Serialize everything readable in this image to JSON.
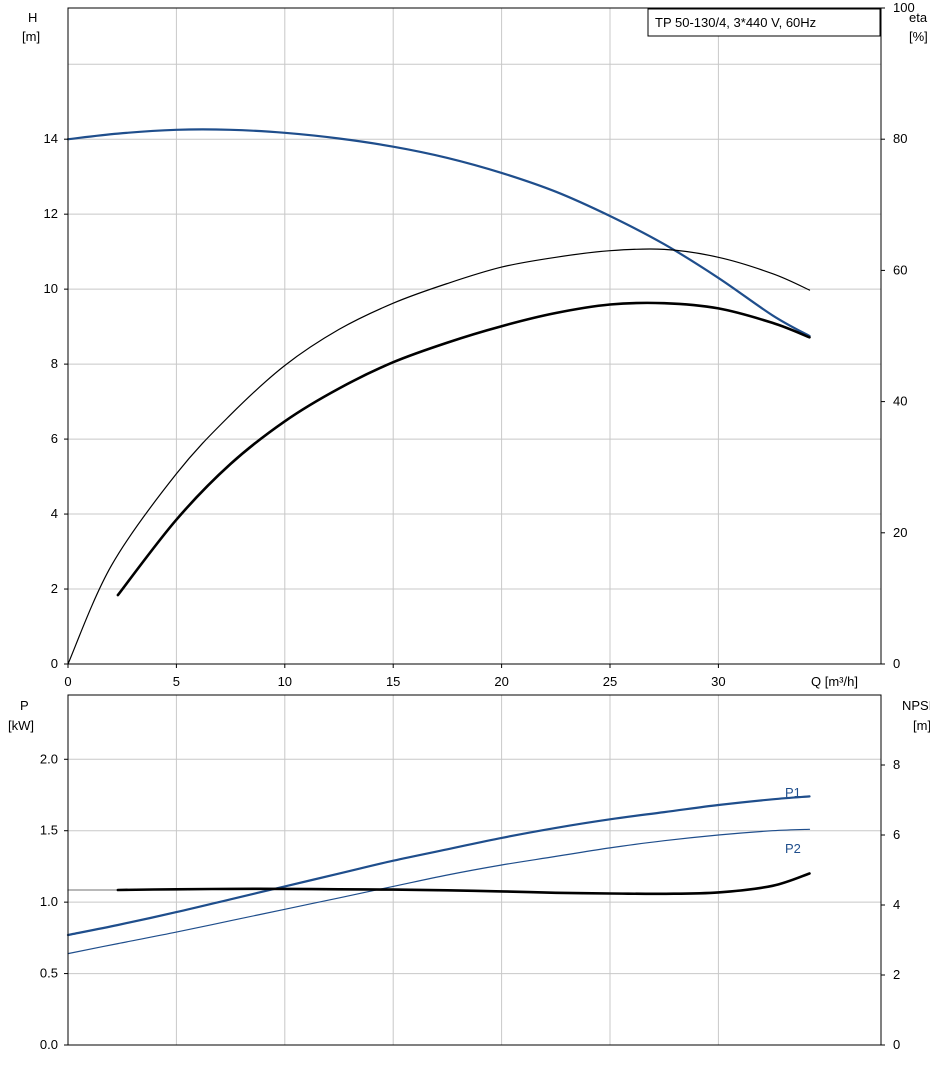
{
  "legend": "TP 50-130/4, 3*440 V, 60Hz",
  "top": {
    "ylabel_left": "H",
    "yunit_left": "[m]",
    "ylabel_right": "eta",
    "yunit_right": "[%]",
    "xlabel": "Q [m³/h]"
  },
  "bottom": {
    "ylabel_left": "P",
    "yunit_left": "[kW]",
    "ylabel_right": "NPSH",
    "yunit_right": "[m]"
  },
  "colors": {
    "blue": "#1f4e8c",
    "black": "#000000",
    "grid": "#c8c8c8"
  },
  "chart_data": [
    {
      "type": "line",
      "panel": "top",
      "x_range": [
        0,
        37.5
      ],
      "x_ticks": [
        0,
        5,
        10,
        15,
        20,
        25,
        30
      ],
      "y_left_range": [
        0,
        17.5
      ],
      "y_left_ticks": [
        0,
        2,
        4,
        6,
        8,
        10,
        12,
        14
      ],
      "y_right_range": [
        0,
        100
      ],
      "y_right_ticks": [
        0,
        20,
        40,
        60,
        80,
        100
      ],
      "grid": true,
      "series": [
        {
          "axis": "left",
          "color": "#1f4e8c",
          "width": 2.2,
          "x": [
            0,
            2.3,
            5,
            7.5,
            10,
            12.5,
            15,
            17.5,
            20,
            22.5,
            25,
            27.5,
            30,
            32.5,
            34.2
          ],
          "y": [
            14.0,
            14.15,
            14.25,
            14.25,
            14.17,
            14.02,
            13.8,
            13.5,
            13.1,
            12.6,
            11.95,
            11.2,
            10.3,
            9.3,
            8.75
          ]
        },
        {
          "axis": "right",
          "color": "#000000",
          "width": 1.2,
          "x": [
            0,
            2,
            5,
            7.5,
            10,
            12.5,
            15,
            17.5,
            20,
            22.5,
            25,
            27.5,
            30,
            32.5,
            34.2
          ],
          "y": [
            0,
            15,
            29,
            38,
            45.5,
            51,
            55,
            58,
            60.5,
            62,
            63,
            63.2,
            62,
            59.5,
            57
          ]
        },
        {
          "axis": "right",
          "color": "#000000",
          "width": 2.6,
          "x": [
            2.3,
            5,
            7.5,
            10,
            12.5,
            15,
            17.5,
            20,
            22.5,
            25,
            27.5,
            30,
            32.5,
            34.2
          ],
          "y": [
            10.5,
            22,
            30.5,
            37,
            42,
            46,
            49,
            51.5,
            53.5,
            54.8,
            55,
            54.2,
            52,
            49.8
          ]
        }
      ]
    },
    {
      "type": "line",
      "panel": "bottom",
      "x_range": [
        0,
        37.5
      ],
      "y_left_range": [
        0,
        2.45
      ],
      "y_left_ticks": [
        0.0,
        0.5,
        1.0,
        1.5,
        2.0
      ],
      "y_right_range": [
        0,
        10
      ],
      "y_right_ticks": [
        0,
        2,
        4,
        6,
        8
      ],
      "grid": true,
      "series": [
        {
          "name": "P1",
          "axis": "left",
          "color": "#1f4e8c",
          "width": 2.2,
          "x": [
            0,
            2.3,
            5,
            7.5,
            10,
            12.5,
            15,
            17.5,
            20,
            22.5,
            25,
            27.5,
            30,
            32.5,
            34.2
          ],
          "y": [
            0.77,
            0.84,
            0.93,
            1.02,
            1.11,
            1.2,
            1.29,
            1.37,
            1.45,
            1.52,
            1.58,
            1.63,
            1.68,
            1.72,
            1.74
          ]
        },
        {
          "name": "P2",
          "axis": "left",
          "color": "#1f4e8c",
          "width": 1.2,
          "x": [
            0,
            2.3,
            5,
            7.5,
            10,
            12.5,
            15,
            17.5,
            20,
            22.5,
            25,
            27.5,
            30,
            32.5,
            34.2
          ],
          "y": [
            0.64,
            0.71,
            0.79,
            0.87,
            0.95,
            1.03,
            1.11,
            1.19,
            1.26,
            1.32,
            1.38,
            1.43,
            1.47,
            1.5,
            1.51
          ]
        },
        {
          "axis": "right",
          "color": "#a0a0a0",
          "width": 1.5,
          "x": [
            0,
            2.3
          ],
          "y": [
            4.43,
            4.43
          ]
        },
        {
          "axis": "right",
          "color": "#000000",
          "width": 2.6,
          "x": [
            2.3,
            5,
            7.5,
            10,
            12.5,
            15,
            17.5,
            20,
            22.5,
            25,
            27.5,
            30,
            32.5,
            34.2
          ],
          "y": [
            4.43,
            4.45,
            4.46,
            4.46,
            4.45,
            4.44,
            4.42,
            4.39,
            4.35,
            4.33,
            4.32,
            4.36,
            4.55,
            4.9
          ]
        }
      ]
    }
  ]
}
